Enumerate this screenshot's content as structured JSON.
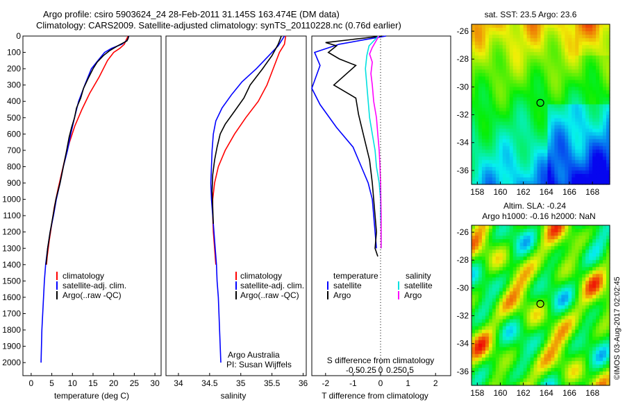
{
  "header": {
    "line1": "Argo profile: csiro 5903624_24 28-Feb-2011 31.145S 163.474E (DM data)",
    "line2": "Climatology: CARS2009. Satellite-adjusted climatology: synTS_20110228.nc (0.76d earlier)"
  },
  "colors": {
    "climatology": "#ff0000",
    "satellite": "#0000ff",
    "argo": "#000000",
    "salinity_satellite": "#00e0e0",
    "salinity_argo": "#ff00ff"
  },
  "depth_axis": {
    "ticks": [
      0,
      100,
      200,
      300,
      400,
      500,
      600,
      700,
      800,
      900,
      1000,
      1100,
      1200,
      1300,
      1400,
      1500,
      1600,
      1700,
      1800,
      1900,
      2000
    ],
    "range": [
      0,
      2080
    ]
  },
  "panels": {
    "temperature": {
      "xlabel": "temperature (deg C)",
      "xticks": [
        "0",
        "5",
        "10",
        "15",
        "20",
        "25",
        "30"
      ],
      "legend": [
        "climatology",
        "satellite-adj. clim.",
        "Argo(..raw -QC)"
      ]
    },
    "salinity": {
      "xlabel": "salinity",
      "xticks": [
        "34",
        "34.5",
        "35",
        "35.5",
        "36"
      ],
      "legend": [
        "climatology",
        "satellite-adj. clim.",
        "Argo(..raw -QC)"
      ],
      "credit1": "Argo Australia",
      "credit2": "PI: Susan Wijffels"
    },
    "difference": {
      "xlabel": "T difference from climatology",
      "xlabel_top": "S difference from climatology",
      "xticks_bottom": [
        "-2",
        "-1",
        "0",
        "1",
        "2"
      ],
      "xticks_top": [
        "-0.5",
        "-0.25",
        "0",
        "0.25",
        "0.5"
      ],
      "legend_t_title": "temperature",
      "legend_s_title": "salinity",
      "legend_t": [
        "satellite",
        "Argo"
      ],
      "legend_s": [
        "satellite",
        "Argo"
      ]
    },
    "sst_map": {
      "title": "sat. SST: 23.5 Argo: 23.6",
      "yticks": [
        "-26",
        "-28",
        "-30",
        "-32",
        "-34",
        "-36"
      ],
      "xticks": [
        "158",
        "160",
        "162",
        "164",
        "166",
        "168"
      ]
    },
    "sla_map": {
      "title1": "Altim. SLA: -0.24",
      "title2": "Argo h1000: -0.16 h2000: NaN",
      "yticks": [
        "-26",
        "-28",
        "-30",
        "-32",
        "-34",
        "-36"
      ],
      "xticks": [
        "158",
        "160",
        "162",
        "164",
        "166",
        "168"
      ]
    }
  },
  "side_label": "©IMOS 03-Aug-2017 02:02:45",
  "chart_data": [
    {
      "type": "line",
      "title": "",
      "xlabel": "temperature (deg C)",
      "ylabel": "",
      "xlim": [
        -2,
        31.5
      ],
      "ylim": [
        2080,
        0
      ],
      "series": [
        {
          "name": "climatology",
          "color": "#ff0000",
          "points": [
            [
              23.5,
              0
            ],
            [
              23,
              25
            ],
            [
              22.6,
              50
            ],
            [
              21.5,
              75
            ],
            [
              20,
              100
            ],
            [
              18.5,
              150
            ],
            [
              16.5,
              250
            ],
            [
              14.2,
              350
            ],
            [
              12.3,
              450
            ],
            [
              10.6,
              550
            ],
            [
              9.3,
              650
            ],
            [
              8.2,
              750
            ],
            [
              7.3,
              850
            ],
            [
              6.4,
              950
            ],
            [
              5.6,
              1050
            ],
            [
              5.0,
              1150
            ],
            [
              4.4,
              1250
            ],
            [
              3.9,
              1350
            ],
            [
              3.7,
              1400
            ]
          ]
        },
        {
          "name": "satellite-adj. clim.",
          "color": "#0000ff",
          "points": [
            [
              23.7,
              0
            ],
            [
              23.3,
              25
            ],
            [
              22.0,
              50
            ],
            [
              19.5,
              75
            ],
            [
              17.8,
              100
            ],
            [
              16.2,
              150
            ],
            [
              14.6,
              200
            ],
            [
              13.0,
              300
            ],
            [
              11.5,
              400
            ],
            [
              10.5,
              500
            ],
            [
              9.6,
              600
            ],
            [
              8.8,
              700
            ],
            [
              7.8,
              800
            ],
            [
              7.0,
              900
            ],
            [
              6.1,
              1000
            ],
            [
              5.4,
              1100
            ],
            [
              4.6,
              1200
            ],
            [
              4.0,
              1300
            ],
            [
              3.5,
              1400
            ],
            [
              3.2,
              1500
            ],
            [
              3.0,
              1600
            ],
            [
              2.8,
              1700
            ],
            [
              2.6,
              1800
            ],
            [
              2.5,
              1900
            ],
            [
              2.4,
              2000
            ]
          ]
        },
        {
          "name": "Argo(..raw -QC)",
          "color": "#000000",
          "points": [
            [
              23.6,
              0
            ],
            [
              23.5,
              15
            ],
            [
              23.2,
              30
            ],
            [
              21.0,
              60
            ],
            [
              19.0,
              90
            ],
            [
              17.5,
              120
            ],
            [
              16.0,
              160
            ],
            [
              15.0,
              200
            ],
            [
              13.8,
              260
            ],
            [
              12.7,
              320
            ],
            [
              12.0,
              380
            ],
            [
              11.0,
              440
            ],
            [
              10.5,
              500
            ],
            [
              9.8,
              560
            ],
            [
              9.2,
              620
            ],
            [
              8.6,
              700
            ],
            [
              7.8,
              800
            ],
            [
              7.0,
              900
            ],
            [
              6.0,
              1000
            ],
            [
              5.3,
              1100
            ],
            [
              4.6,
              1200
            ],
            [
              4.0,
              1300
            ],
            [
              3.6,
              1400
            ]
          ]
        }
      ]
    },
    {
      "type": "line",
      "title": "",
      "xlabel": "salinity",
      "ylabel": "",
      "xlim": [
        33.8,
        36.05
      ],
      "ylim": [
        2080,
        0
      ],
      "series": [
        {
          "name": "climatology",
          "color": "#ff0000",
          "points": [
            [
              35.72,
              0
            ],
            [
              35.7,
              50
            ],
            [
              35.62,
              100
            ],
            [
              35.52,
              200
            ],
            [
              35.42,
              300
            ],
            [
              35.28,
              400
            ],
            [
              35.08,
              500
            ],
            [
              34.9,
              600
            ],
            [
              34.75,
              700
            ],
            [
              34.64,
              800
            ],
            [
              34.58,
              900
            ],
            [
              34.55,
              1000
            ],
            [
              34.55,
              1100
            ],
            [
              34.56,
              1200
            ],
            [
              34.58,
              1300
            ],
            [
              34.6,
              1400
            ]
          ]
        },
        {
          "name": "satellite-adj. clim.",
          "color": "#0000ff",
          "points": [
            [
              35.7,
              0
            ],
            [
              35.6,
              60
            ],
            [
              35.45,
              120
            ],
            [
              35.25,
              200
            ],
            [
              35.02,
              280
            ],
            [
              34.85,
              360
            ],
            [
              34.7,
              440
            ],
            [
              34.6,
              520
            ],
            [
              34.56,
              600
            ],
            [
              34.54,
              700
            ],
            [
              34.53,
              800
            ],
            [
              34.52,
              900
            ],
            [
              34.53,
              1000
            ],
            [
              34.55,
              1100
            ],
            [
              34.57,
              1200
            ],
            [
              34.59,
              1300
            ],
            [
              34.61,
              1400
            ],
            [
              34.62,
              1500
            ],
            [
              34.64,
              1600
            ],
            [
              34.65,
              1700
            ],
            [
              34.66,
              1800
            ],
            [
              34.67,
              1900
            ],
            [
              34.68,
              2000
            ]
          ]
        },
        {
          "name": "Argo(..raw -QC)",
          "color": "#000000",
          "points": [
            [
              35.65,
              0
            ],
            [
              35.6,
              50
            ],
            [
              35.5,
              120
            ],
            [
              35.35,
              200
            ],
            [
              35.15,
              300
            ],
            [
              35.05,
              380
            ],
            [
              34.9,
              460
            ],
            [
              34.75,
              540
            ],
            [
              34.67,
              600
            ],
            [
              34.62,
              680
            ],
            [
              34.58,
              760
            ],
            [
              34.55,
              850
            ],
            [
              34.54,
              950
            ],
            [
              34.55,
              1050
            ],
            [
              34.56,
              1150
            ]
          ]
        }
      ]
    },
    {
      "type": "line",
      "title": "",
      "xlabel": "T difference from climatology",
      "x2label": "S difference from climatology",
      "ylabel": "",
      "xlim": [
        -2.5,
        2.55
      ],
      "ylim": [
        2080,
        0
      ],
      "series": [
        {
          "name": "satellite",
          "group": "temperature",
          "color": "#0000ff",
          "points": [
            [
              0.2,
              0
            ],
            [
              -0.5,
              20
            ],
            [
              -1.5,
              50
            ],
            [
              -2.4,
              100
            ],
            [
              -2.2,
              180
            ],
            [
              -2.5,
              320
            ],
            [
              -2.2,
              420
            ],
            [
              -1.6,
              560
            ],
            [
              -1.0,
              680
            ],
            [
              -0.7,
              800
            ],
            [
              -0.45,
              900
            ],
            [
              -0.3,
              1000
            ],
            [
              -0.25,
              1100
            ],
            [
              -0.2,
              1200
            ],
            [
              -0.15,
              1300
            ]
          ]
        },
        {
          "name": "Argo",
          "group": "temperature",
          "color": "#000000",
          "points": [
            [
              0.05,
              0
            ],
            [
              -2.0,
              40
            ],
            [
              -1.6,
              60
            ],
            [
              -1.9,
              100
            ],
            [
              -1.5,
              140
            ],
            [
              -0.9,
              180
            ],
            [
              -1.7,
              300
            ],
            [
              -0.9,
              380
            ],
            [
              -0.8,
              480
            ],
            [
              -0.6,
              620
            ],
            [
              -0.4,
              760
            ],
            [
              -0.3,
              900
            ],
            [
              -0.25,
              1000
            ],
            [
              -0.2,
              1100
            ],
            [
              -0.15,
              1200
            ],
            [
              -0.2,
              1300
            ],
            [
              -0.1,
              1350
            ]
          ]
        },
        {
          "name": "satellite",
          "group": "salinity",
          "color": "#00e0e0",
          "points": [
            [
              -0.08,
              0
            ],
            [
              -0.42,
              60
            ],
            [
              -0.5,
              120
            ],
            [
              -0.55,
              200
            ],
            [
              -0.5,
              300
            ],
            [
              -0.45,
              400
            ],
            [
              -0.4,
              500
            ],
            [
              -0.3,
              600
            ],
            [
              -0.2,
              700
            ],
            [
              -0.15,
              800
            ],
            [
              -0.05,
              900
            ],
            [
              0,
              1000
            ],
            [
              0,
              1100
            ],
            [
              0.02,
              1200
            ],
            [
              0.02,
              1300
            ]
          ]
        },
        {
          "name": "Argo",
          "group": "salinity",
          "color": "#ff00ff",
          "points": [
            [
              -0.06,
              0
            ],
            [
              -0.3,
              70
            ],
            [
              -0.4,
              110
            ],
            [
              -0.3,
              160
            ],
            [
              -0.35,
              230
            ],
            [
              -0.3,
              300
            ],
            [
              -0.25,
              400
            ],
            [
              -0.15,
              500
            ],
            [
              -0.1,
              600
            ],
            [
              -0.05,
              700
            ],
            [
              -0.02,
              800
            ],
            [
              0,
              900
            ],
            [
              0.01,
              1000
            ],
            [
              0.02,
              1100
            ],
            [
              0.02,
              1200
            ],
            [
              0.02,
              1300
            ]
          ]
        }
      ]
    },
    {
      "type": "heatmap",
      "title": "sat. SST: 23.5 Argo: 23.6",
      "xlim": [
        157.5,
        169.5
      ],
      "ylim": [
        -37,
        -25.5
      ],
      "float_position": [
        163.474,
        -31.145
      ]
    },
    {
      "type": "heatmap",
      "title": "Altim. SLA: -0.24",
      "xlim": [
        157.5,
        169.5
      ],
      "ylim": [
        -37,
        -25.5
      ],
      "float_position": [
        163.474,
        -31.145
      ]
    }
  ]
}
